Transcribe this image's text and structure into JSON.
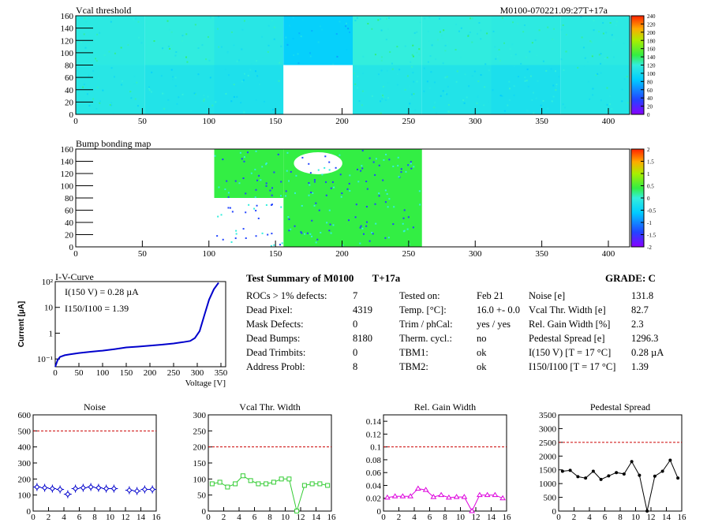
{
  "header": {
    "title": "Vcal threshold",
    "module_id": "M0100-070221.09:27T+17a"
  },
  "colors": {
    "green": "#33ee44",
    "cyan": "#33eedd",
    "grid_red": "#cc0000",
    "blue_curve": "#0000cc",
    "noise": "#0000cc",
    "vcal": "#33cc33",
    "gain": "#dd00dd",
    "ped": "#000000"
  },
  "chart_data": [
    {
      "type": "heatmap",
      "title": "Vcal threshold",
      "x_ticks": [
        "0",
        "50",
        "100",
        "150",
        "200",
        "250",
        "300",
        "350",
        "400"
      ],
      "y_ticks": [
        "0",
        "20",
        "40",
        "60",
        "80",
        "100",
        "120",
        "140",
        "160"
      ],
      "xlim": [
        0,
        416
      ],
      "ylim": [
        0,
        160
      ],
      "palette_ticks": [
        "0",
        "20",
        "40",
        "60",
        "80",
        "100",
        "120",
        "140",
        "160",
        "180",
        "200",
        "220",
        "240"
      ],
      "roc_values": [
        [
          115,
          118,
          112,
          88,
          120,
          118,
          116,
          115
        ],
        [
          112,
          108,
          105,
          -1,
          110,
          108,
          104,
          110
        ]
      ]
    },
    {
      "type": "heatmap",
      "title": "Bump bonding map",
      "x_ticks": [
        "0",
        "50",
        "100",
        "150",
        "200",
        "250",
        "300",
        "350",
        "400"
      ],
      "y_ticks": [
        "0",
        "20",
        "40",
        "60",
        "80",
        "100",
        "120",
        "140",
        "160"
      ],
      "xlim": [
        0,
        416
      ],
      "ylim": [
        0,
        160
      ],
      "palette_ticks": [
        "-2",
        "-1.5",
        "-1",
        "-0.5",
        "0",
        "0.5",
        "1",
        "1.5",
        "2"
      ],
      "dead_rocs": [
        2,
        3,
        4
      ]
    },
    {
      "type": "line",
      "title": "I-V-Curve",
      "xlabel": "Voltage [V]",
      "ylabel": "Current [µA]",
      "x_ticks": [
        "0",
        "50",
        "100",
        "150",
        "200",
        "250",
        "300",
        "350"
      ],
      "y_ticks": [
        "10⁻¹",
        "1",
        "10",
        "10²"
      ],
      "xlim": [
        0,
        360
      ],
      "ylim_log": [
        0.05,
        100
      ],
      "legend": [
        "I(150 V) = 0.28 µA",
        "I150/I100 = 1.39"
      ],
      "x": [
        0,
        5,
        10,
        20,
        30,
        50,
        75,
        100,
        125,
        150,
        175,
        200,
        225,
        250,
        270,
        285,
        295,
        305,
        315,
        325,
        335,
        345
      ],
      "y": [
        0.05,
        0.09,
        0.12,
        0.14,
        0.15,
        0.17,
        0.19,
        0.21,
        0.24,
        0.28,
        0.3,
        0.33,
        0.36,
        0.4,
        0.45,
        0.5,
        0.65,
        1.2,
        5,
        20,
        50,
        90
      ]
    },
    {
      "type": "line",
      "title": "Noise",
      "x": [
        0,
        1,
        2,
        3,
        4,
        5,
        6,
        7,
        8,
        9,
        10,
        11,
        12,
        13,
        14,
        15
      ],
      "values": [
        150,
        145,
        140,
        135,
        105,
        140,
        145,
        150,
        145,
        140,
        140,
        null,
        130,
        125,
        135,
        135
      ],
      "ylim": [
        0,
        600
      ],
      "ref": 500,
      "y_ticks": [
        "0",
        "100",
        "200",
        "300",
        "400",
        "500",
        "600"
      ]
    },
    {
      "type": "line",
      "title": "Vcal Thr. Width",
      "x": [
        0,
        1,
        2,
        3,
        4,
        5,
        6,
        7,
        8,
        9,
        10,
        11,
        12,
        13,
        14,
        15
      ],
      "values": [
        85,
        90,
        75,
        85,
        110,
        95,
        85,
        85,
        90,
        100,
        100,
        0,
        80,
        85,
        85,
        80
      ],
      "ylim": [
        0,
        300
      ],
      "ref": 200,
      "y_ticks": [
        "0",
        "50",
        "100",
        "150",
        "200",
        "250",
        "300"
      ]
    },
    {
      "type": "line",
      "title": "Rel. Gain Width",
      "x": [
        0,
        1,
        2,
        3,
        4,
        5,
        6,
        7,
        8,
        9,
        10,
        11,
        12,
        13,
        14,
        15
      ],
      "values": [
        0.021,
        0.023,
        0.023,
        0.023,
        0.035,
        0.033,
        0.022,
        0.025,
        0.021,
        0.022,
        0.022,
        0.0,
        0.025,
        0.025,
        0.025,
        0.02
      ],
      "ylim": [
        0,
        0.15
      ],
      "ref": 0.1,
      "y_ticks": [
        "0",
        "0.02",
        "0.04",
        "0.06",
        "0.08",
        "0.1",
        "0.12",
        "0.14"
      ]
    },
    {
      "type": "line",
      "title": "Pedestal Spread",
      "x": [
        0,
        1,
        2,
        3,
        4,
        5,
        6,
        7,
        8,
        9,
        10,
        11,
        12,
        13,
        14,
        15
      ],
      "values": [
        1450,
        1480,
        1250,
        1200,
        1450,
        1150,
        1280,
        1400,
        1350,
        1800,
        1300,
        0,
        1270,
        1450,
        1850,
        1200
      ],
      "ylim": [
        0,
        3500
      ],
      "ref": 2500,
      "y_ticks": [
        "0",
        "500",
        "1000",
        "1500",
        "2000",
        "2500",
        "3000",
        "3500"
      ]
    }
  ],
  "mini_x_ticks": [
    "0",
    "2",
    "4",
    "6",
    "8",
    "10",
    "12",
    "14",
    "16"
  ],
  "summary": {
    "title": "Test Summary of M0100",
    "tag": "T+17a",
    "grade": "GRADE:  C",
    "col1_labels": [
      "ROCs > 1% defects:",
      "Dead Pixel:",
      "Mask Defects:",
      "Dead Bumps:",
      "Dead Trimbits:",
      "Address Probl:"
    ],
    "col1_values": [
      "7",
      "4319",
      "0",
      "8180",
      "0",
      "8"
    ],
    "col2_labels": [
      "Tested on:",
      "Temp. [°C]:",
      "Trim / phCal:",
      "Therm. cycl.:",
      "TBM1:",
      "TBM2:"
    ],
    "col2_values": [
      "Feb 21",
      "16.0 +- 0.0",
      "yes / yes",
      "no",
      "ok",
      "ok"
    ],
    "col3_labels": [
      "Noise [e]",
      "Vcal Thr. Width [e]",
      "Rel. Gain Width [%]",
      "Pedestal Spread [e]",
      "I(150 V) [T = 17 °C]",
      "I150/I100  [T = 17 °C]"
    ],
    "col3_values": [
      "131.8",
      "82.7",
      "2.3",
      "1296.3",
      "0.28 µA",
      "1.39"
    ]
  }
}
